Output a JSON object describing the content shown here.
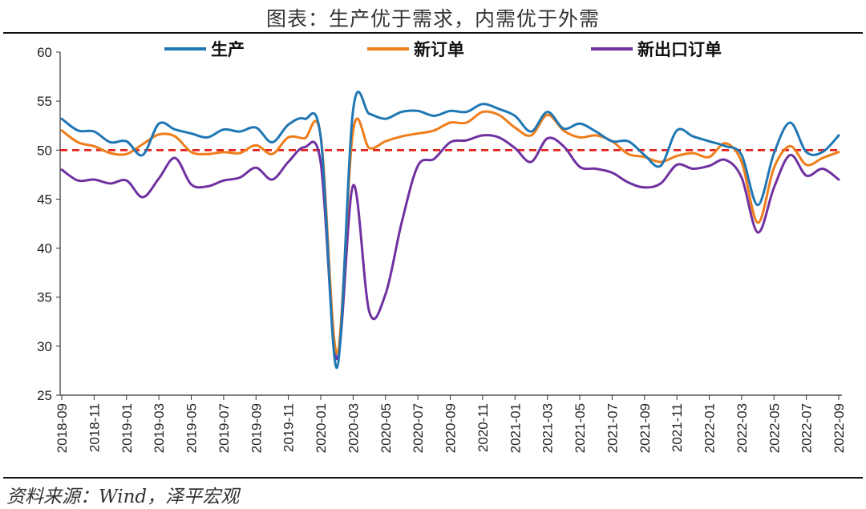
{
  "title": "图表：生产优于需求，内需优于外需",
  "source": "资料来源：Wind，泽平宏观",
  "chart_data": {
    "type": "line",
    "title": "图表：生产优于需求，内需优于外需",
    "xlabel": "",
    "ylabel": "",
    "ylim": [
      25,
      60
    ],
    "yticks": [
      25,
      30,
      35,
      40,
      45,
      50,
      55,
      60
    ],
    "grid": false,
    "legend_position": "top",
    "x": [
      "2018-09",
      "2018-10",
      "2018-11",
      "2018-12",
      "2019-01",
      "2019-02",
      "2019-03",
      "2019-04",
      "2019-05",
      "2019-06",
      "2019-07",
      "2019-08",
      "2019-09",
      "2019-10",
      "2019-11",
      "2019-12",
      "2020-01",
      "2020-02",
      "2020-03",
      "2020-04",
      "2020-05",
      "2020-06",
      "2020-07",
      "2020-08",
      "2020-09",
      "2020-10",
      "2020-11",
      "2020-12",
      "2021-01",
      "2021-02",
      "2021-03",
      "2021-04",
      "2021-05",
      "2021-06",
      "2021-07",
      "2021-08",
      "2021-09",
      "2021-10",
      "2021-11",
      "2021-12",
      "2022-01",
      "2022-02",
      "2022-03",
      "2022-04",
      "2022-05",
      "2022-06",
      "2022-07",
      "2022-08",
      "2022-09"
    ],
    "xtick_labels": [
      "2018-09",
      "2018-11",
      "2019-01",
      "2019-03",
      "2019-05",
      "2019-07",
      "2019-09",
      "2019-11",
      "2020-01",
      "2020-03",
      "2020-05",
      "2020-07",
      "2020-09",
      "2020-11",
      "2021-01",
      "2021-03",
      "2021-05",
      "2021-07",
      "2021-09",
      "2021-11",
      "2022-01",
      "2022-03",
      "2022-05",
      "2022-07",
      "2022-09"
    ],
    "reference_line": {
      "y": 50,
      "color": "#e0201b",
      "style": "dashed"
    },
    "series": [
      {
        "name": "生产",
        "color": "#1f77b4",
        "values": [
          53.2,
          52.0,
          51.9,
          50.8,
          50.9,
          49.5,
          52.7,
          52.1,
          51.7,
          51.3,
          52.1,
          51.9,
          52.3,
          50.8,
          52.6,
          53.2,
          51.3,
          27.8,
          54.1,
          53.7,
          53.2,
          53.9,
          54.0,
          53.5,
          54.0,
          53.9,
          54.7,
          54.2,
          53.5,
          51.9,
          53.9,
          52.2,
          52.7,
          51.9,
          50.9,
          50.9,
          49.5,
          48.4,
          52.0,
          51.4,
          50.9,
          50.4,
          49.5,
          44.4,
          49.7,
          52.8,
          49.8,
          49.8,
          51.5
        ]
      },
      {
        "name": "新订单",
        "color": "#ee7d1a",
        "values": [
          52.0,
          50.8,
          50.4,
          49.7,
          49.6,
          50.6,
          51.6,
          51.4,
          49.8,
          49.6,
          49.8,
          49.7,
          50.5,
          49.6,
          51.3,
          51.2,
          51.4,
          29.3,
          52.0,
          50.2,
          50.9,
          51.4,
          51.7,
          52.0,
          52.8,
          52.8,
          53.9,
          53.6,
          52.3,
          51.5,
          53.6,
          52.0,
          51.3,
          51.5,
          50.9,
          49.6,
          49.3,
          48.8,
          49.4,
          49.7,
          49.3,
          50.7,
          48.8,
          42.6,
          48.2,
          50.4,
          48.5,
          49.2,
          49.8
        ]
      },
      {
        "name": "新出口订单",
        "color": "#7030a0",
        "values": [
          48.0,
          46.9,
          47.0,
          46.6,
          46.9,
          45.2,
          47.1,
          49.2,
          46.5,
          46.3,
          46.9,
          47.2,
          48.2,
          47.0,
          48.8,
          50.3,
          48.7,
          28.7,
          46.4,
          33.5,
          35.3,
          42.6,
          48.4,
          49.1,
          50.8,
          51.0,
          51.5,
          51.3,
          50.2,
          48.8,
          51.2,
          50.4,
          48.3,
          48.1,
          47.7,
          46.7,
          46.2,
          46.6,
          48.5,
          48.1,
          48.4,
          49.0,
          47.2,
          41.6,
          46.2,
          49.5,
          47.4,
          48.1,
          47.0
        ]
      }
    ]
  }
}
